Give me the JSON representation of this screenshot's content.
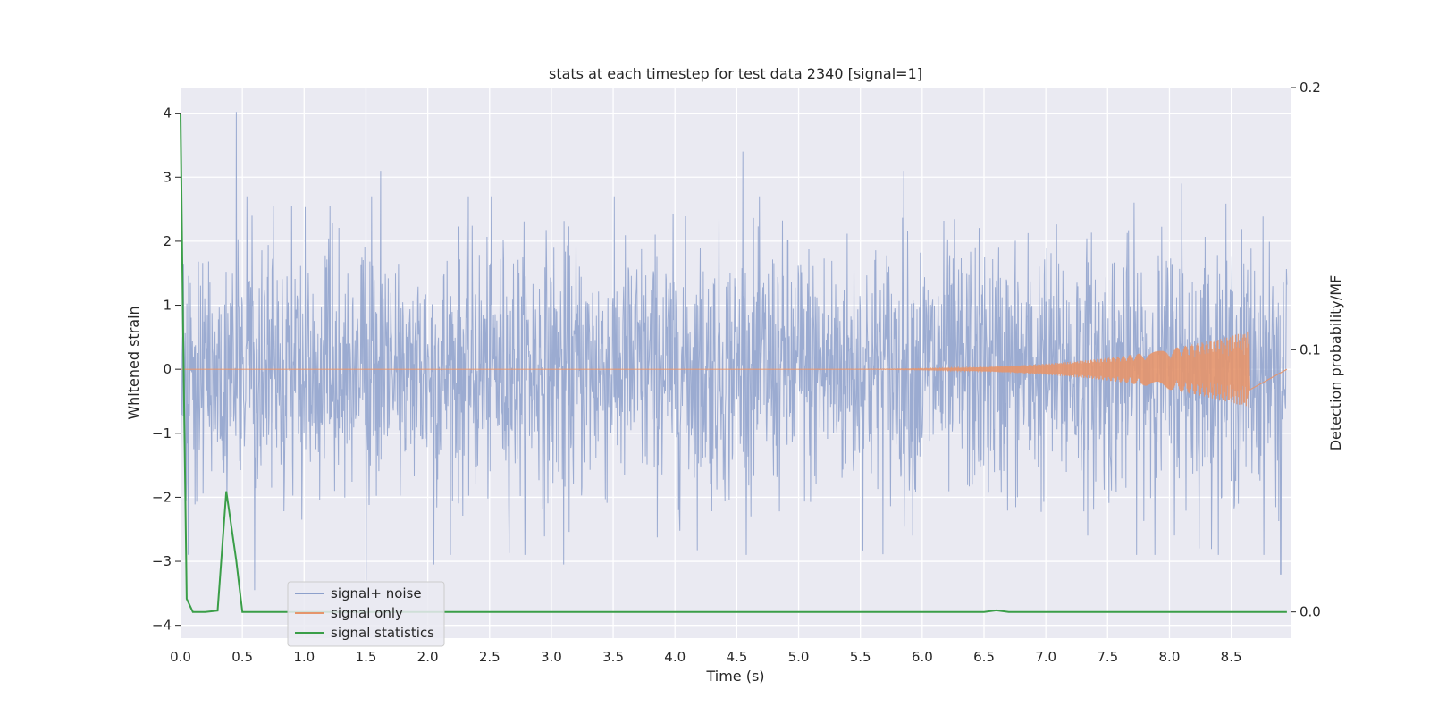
{
  "chart_data": {
    "type": "line",
    "title": "stats at each timestep for test data 2340 [signal=1]",
    "xlabel": "Time (s)",
    "ylabel": "Whitened strain",
    "y2label": "Detection probability/MF",
    "xlim": [
      0.0,
      8.98
    ],
    "ylim": [
      -4.2,
      4.4
    ],
    "y2lim": [
      -0.01,
      0.2
    ],
    "xticks": [
      0.0,
      0.5,
      1.0,
      1.5,
      2.0,
      2.5,
      3.0,
      3.5,
      4.0,
      4.5,
      5.0,
      5.5,
      6.0,
      6.5,
      7.0,
      7.5,
      8.0,
      8.5
    ],
    "xtick_labels": [
      "0.0",
      "0.5",
      "1.0",
      "1.5",
      "2.0",
      "2.5",
      "3.0",
      "3.5",
      "4.0",
      "4.5",
      "5.0",
      "5.5",
      "6.0",
      "6.5",
      "7.0",
      "7.5",
      "8.0",
      "8.5"
    ],
    "yticks": [
      -4,
      -3,
      -2,
      -1,
      0,
      1,
      2,
      3,
      4
    ],
    "ytick_labels": [
      "−4",
      "−3",
      "−2",
      "−1",
      "0",
      "1",
      "2",
      "3",
      "4"
    ],
    "y2ticks": [
      0.0,
      0.1,
      0.2
    ],
    "y2tick_labels": [
      "0.0",
      "0.1",
      "0.2"
    ],
    "grid": true,
    "legend_position": "lower-left",
    "series": [
      {
        "name": "signal+ noise",
        "axis": "left",
        "color": "#8da0cb",
        "opacity": 0.85,
        "style": "whitened noise envelope",
        "envelope": {
          "typical_amplitude": 1.6,
          "spikes": [
            {
              "t": 0.45,
              "v": 4.02
            },
            {
              "t": 0.6,
              "v": -3.45
            },
            {
              "t": 1.5,
              "v": -3.3
            },
            {
              "t": 1.62,
              "v": 3.1
            },
            {
              "t": 2.05,
              "v": -3.05
            },
            {
              "t": 3.1,
              "v": -3.05
            },
            {
              "t": 4.55,
              "v": 3.4
            },
            {
              "t": 5.85,
              "v": 3.1
            },
            {
              "t": 8.9,
              "v": -3.2
            },
            {
              "t": 8.1,
              "v": 2.9
            }
          ]
        }
      },
      {
        "name": "signal only",
        "axis": "left",
        "color": "#e5956c",
        "style": "chirp",
        "chirp": {
          "start": 5.0,
          "end": 8.65,
          "peak_amplitude": 0.6
        }
      },
      {
        "name": "signal statistics",
        "axis": "right",
        "color": "#3a9e48",
        "points": [
          [
            0.0,
            0.19
          ],
          [
            0.02,
            0.11
          ],
          [
            0.05,
            0.005
          ],
          [
            0.1,
            0.0
          ],
          [
            0.2,
            0.0
          ],
          [
            0.3,
            0.0005
          ],
          [
            0.37,
            0.046
          ],
          [
            0.45,
            0.02
          ],
          [
            0.5,
            0.0
          ],
          [
            6.5,
            0.0
          ],
          [
            6.6,
            0.0006
          ],
          [
            6.7,
            0.0
          ],
          [
            8.95,
            0.0
          ]
        ]
      }
    ]
  }
}
